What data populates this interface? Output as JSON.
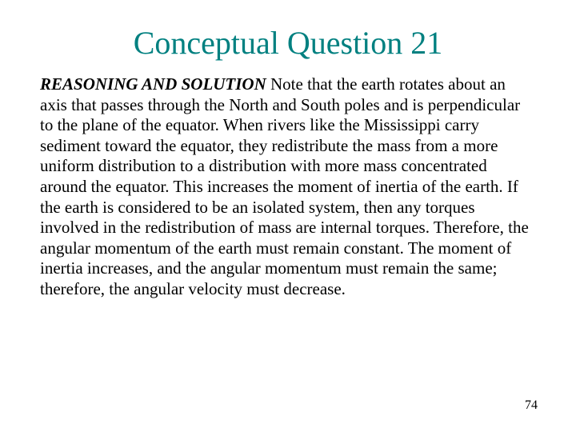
{
  "title": {
    "text": "Conceptual Question 21",
    "color": "#008080",
    "fontsize": 40
  },
  "body": {
    "label": "REASONING AND SOLUTION",
    "text": "   Note that the earth rotates about an axis that passes through the North and South poles and is perpendicular to the plane of the equator.  When rivers like the Mississippi carry sediment toward the equator, they redistribute the mass from a more uniform distribution to a distribution with more mass concentrated around the equator.  This increases the moment of inertia of the earth.  If the earth is considered to be an isolated system, then any torques involved in the redistribution of mass are internal torques.  Therefore, the angular momentum of the earth must remain constant.  The moment of inertia increases, and the angular momentum must remain the same; therefore, the angular velocity must decrease.",
    "fontsize": 21,
    "text_color": "#000000"
  },
  "page_number": "74",
  "background_color": "#ffffff"
}
